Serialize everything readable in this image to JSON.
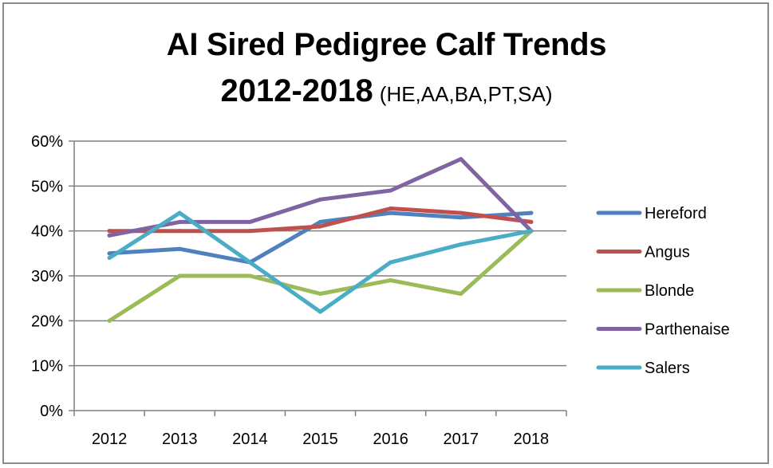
{
  "chart_data": {
    "type": "line",
    "title": "AI Sired Pedigree Calf Trends",
    "title_line2": "2012-2018",
    "title_suffix": "(HE,AA,BA,PT,SA)",
    "categories": [
      "2012",
      "2013",
      "2014",
      "2015",
      "2016",
      "2017",
      "2018"
    ],
    "ylim": [
      0,
      60
    ],
    "y_unit": "%",
    "y_ticks": [
      "0%",
      "10%",
      "20%",
      "30%",
      "40%",
      "50%",
      "60%"
    ],
    "grid": true,
    "legend_position": "right",
    "series": [
      {
        "name": "Hereford",
        "color": "#4f81bd",
        "values": [
          35,
          36,
          33,
          42,
          44,
          43,
          44
        ]
      },
      {
        "name": "Angus",
        "color": "#c0504d",
        "values": [
          40,
          40,
          40,
          41,
          45,
          44,
          42
        ]
      },
      {
        "name": "Blonde",
        "color": "#9bbb59",
        "values": [
          20,
          30,
          30,
          26,
          29,
          26,
          40
        ]
      },
      {
        "name": "Parthenaise",
        "color": "#8064a2",
        "values": [
          39,
          42,
          42,
          47,
          49,
          56,
          40
        ]
      },
      {
        "name": "Salers",
        "color": "#4bacc6",
        "values": [
          34,
          44,
          33,
          22,
          33,
          37,
          40
        ]
      }
    ]
  }
}
